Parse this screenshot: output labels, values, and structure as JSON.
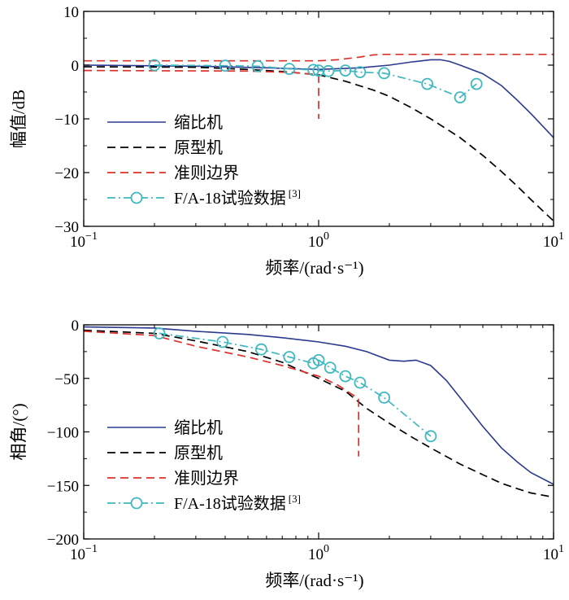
{
  "colors": {
    "scaled": "#2b3a8f",
    "prototype": "#000000",
    "criterion": "#e0302a",
    "flight": "#3fb8c0"
  },
  "chart_data": [
    {
      "type": "line",
      "id": "magnitude",
      "xscale": "log",
      "xlim": [
        0.1,
        10
      ],
      "ylim": [
        -30,
        10
      ],
      "xlabel": "频率/(rad·s⁻¹)",
      "ylabel": "幅值/dB",
      "xticks": [
        {
          "value": 0.1,
          "base": "10",
          "exp": "−1"
        },
        {
          "value": 1,
          "base": "10",
          "exp": "0"
        },
        {
          "value": 10,
          "base": "10",
          "exp": "1"
        }
      ],
      "yticks": [
        {
          "value": 10,
          "label": "10"
        },
        {
          "value": 0,
          "label": "0"
        },
        {
          "value": -10,
          "label": "−10"
        },
        {
          "value": -20,
          "label": "−20"
        },
        {
          "value": -30,
          "label": "−30"
        }
      ],
      "legend_position": "bottom-left",
      "legend": [
        {
          "key": "scaled",
          "label": "缩比机",
          "sup": ""
        },
        {
          "key": "prototype",
          "label": "原型机",
          "sup": ""
        },
        {
          "key": "criterion",
          "label": "准则边界",
          "sup": ""
        },
        {
          "key": "flight",
          "label": "F/A-18试验数据",
          "sup": "[3]"
        }
      ],
      "series": [
        {
          "name": "缩比机",
          "key": "scaled",
          "style": "solid",
          "x": [
            0.1,
            0.3,
            0.6,
            1.0,
            1.5,
            2.0,
            2.5,
            3.0,
            3.3,
            3.6,
            4.0,
            5.0,
            6.0,
            7.0,
            8.0,
            10.0
          ],
          "y": [
            0,
            -0.2,
            -0.5,
            -0.8,
            -0.5,
            0,
            0.6,
            1.0,
            1.0,
            0.7,
            0,
            -1.6,
            -3.8,
            -6.5,
            -9.0,
            -13.5
          ]
        },
        {
          "name": "原型机",
          "key": "prototype",
          "style": "dashed",
          "x": [
            0.1,
            0.3,
            0.5,
            0.7,
            1.0,
            1.3,
            1.7,
            2.0,
            2.5,
            3.0,
            4.0,
            5.0,
            6.0,
            7.0,
            8.0,
            10.0
          ],
          "y": [
            -0.3,
            -0.4,
            -0.8,
            -1.2,
            -1.8,
            -3.0,
            -4.6,
            -5.8,
            -8.0,
            -10.0,
            -13.5,
            -16.8,
            -19.8,
            -22.5,
            -25.0,
            -29.0
          ]
        },
        {
          "name": "准则边界 上限",
          "key": "criterion",
          "style": "dashed",
          "x": [
            0.1,
            1.0,
            1.2,
            1.5,
            1.7,
            1.9,
            10.0
          ],
          "y": [
            0.8,
            0.8,
            1.0,
            1.5,
            1.9,
            2.0,
            2.0
          ]
        },
        {
          "name": "准则边界 下限",
          "key": "criterion",
          "style": "dashed",
          "x": [
            0.1,
            0.5,
            0.8,
            1.0
          ],
          "y": [
            -1.0,
            -1.1,
            -1.4,
            -1.8
          ]
        },
        {
          "name": "准则边界 截止",
          "key": "criterion",
          "style": "dashed",
          "x": [
            1.0,
            1.0
          ],
          "y": [
            -1.8,
            -10.0
          ]
        },
        {
          "name": "F/A-18试验数据",
          "key": "flight",
          "style": "dashdot",
          "markers": true,
          "x": [
            0.2,
            0.4,
            0.55,
            0.75,
            0.95,
            1.0,
            1.1,
            1.3,
            1.5,
            1.9,
            2.9,
            4.0,
            4.7
          ],
          "y": [
            0,
            -0.1,
            -0.2,
            -0.7,
            -0.9,
            -1.0,
            -1.1,
            -1.0,
            -1.3,
            -1.5,
            -3.5,
            -6.0,
            -3.5
          ]
        }
      ]
    },
    {
      "type": "line",
      "id": "phase",
      "xscale": "log",
      "xlim": [
        0.1,
        10
      ],
      "ylim": [
        -200,
        0
      ],
      "xlabel": "频率/(rad·s⁻¹)",
      "ylabel": "相角/(°)",
      "xticks": [
        {
          "value": 0.1,
          "base": "10",
          "exp": "−1"
        },
        {
          "value": 1,
          "base": "10",
          "exp": "0"
        },
        {
          "value": 10,
          "base": "10",
          "exp": "1"
        }
      ],
      "yticks": [
        {
          "value": 0,
          "label": "0"
        },
        {
          "value": -50,
          "label": "−50"
        },
        {
          "value": -100,
          "label": "−100"
        },
        {
          "value": -150,
          "label": "−150"
        },
        {
          "value": -200,
          "label": "−200"
        }
      ],
      "legend_position": "bottom-left",
      "legend": [
        {
          "key": "scaled",
          "label": "缩比机",
          "sup": ""
        },
        {
          "key": "prototype",
          "label": "原型机",
          "sup": ""
        },
        {
          "key": "criterion",
          "label": "准则边界",
          "sup": ""
        },
        {
          "key": "flight",
          "label": "F/A-18试验数据",
          "sup": "[3]"
        }
      ],
      "series": [
        {
          "name": "缩比机",
          "key": "scaled",
          "style": "solid",
          "x": [
            0.1,
            0.2,
            0.3,
            0.5,
            0.7,
            1.0,
            1.3,
            1.6,
            2.0,
            2.3,
            2.6,
            3.0,
            3.5,
            4.0,
            5.0,
            6.0,
            7.0,
            8.0,
            10.0
          ],
          "y": [
            -2,
            -3,
            -6,
            -9,
            -12,
            -16,
            -20,
            -25,
            -33,
            -34,
            -33,
            -38,
            -52,
            -68,
            -95,
            -115,
            -128,
            -138,
            -149
          ]
        },
        {
          "name": "原型机",
          "key": "prototype",
          "style": "dashed",
          "x": [
            0.1,
            0.2,
            0.3,
            0.5,
            0.7,
            1.0,
            1.3,
            1.6,
            2.0,
            2.5,
            3.0,
            4.0,
            5.0,
            6.0,
            7.0,
            8.0,
            10.0
          ],
          "y": [
            -5,
            -8,
            -15,
            -25,
            -35,
            -50,
            -62,
            -78,
            -92,
            -105,
            -115,
            -130,
            -140,
            -148,
            -153,
            -157,
            -161
          ]
        },
        {
          "name": "准则边界 曲线",
          "key": "criterion",
          "style": "dashed",
          "x": [
            0.1,
            0.2,
            0.3,
            0.5,
            0.7,
            1.0,
            1.2,
            1.48
          ],
          "y": [
            -6,
            -10,
            -20,
            -30,
            -38,
            -48,
            -56,
            -69
          ]
        },
        {
          "name": "准则边界 截止",
          "key": "criterion",
          "style": "dashed",
          "x": [
            1.48,
            1.48
          ],
          "y": [
            -69,
            -123
          ]
        },
        {
          "name": "F/A-18试验数据",
          "key": "flight",
          "style": "dashdot",
          "markers": true,
          "x": [
            0.21,
            0.39,
            0.57,
            0.75,
            0.95,
            1.0,
            1.12,
            1.3,
            1.5,
            1.9,
            3.0
          ],
          "y": [
            -8,
            -16,
            -23,
            -30,
            -36,
            -33,
            -40,
            -48,
            -54,
            -68,
            -104
          ]
        }
      ]
    }
  ]
}
